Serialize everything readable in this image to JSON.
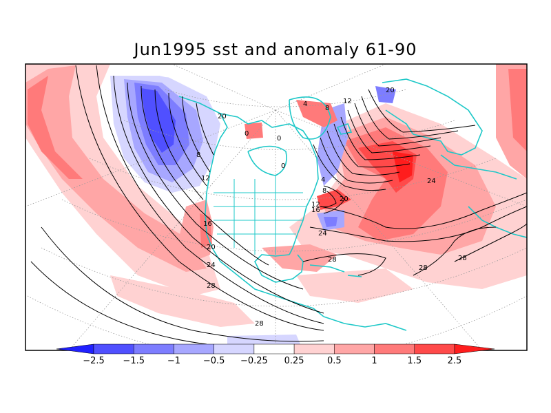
{
  "title": "Jun1995 sst and anomaly 61-90",
  "colors": {
    "border": "#000000",
    "coast": "#1ec8c8",
    "grid": "#9a9a9a",
    "contour": "#000000",
    "neg_strong": "#0000ff",
    "pos_strong": "#ff0000"
  },
  "colorbar": {
    "bins": [
      {
        "color": "#2020ff"
      },
      {
        "color": "#5050ff"
      },
      {
        "color": "#7d7dff"
      },
      {
        "color": "#a7a7ff"
      },
      {
        "color": "#d6d6ff"
      },
      {
        "color": "#ffffff"
      },
      {
        "color": "#ffd2d2"
      },
      {
        "color": "#ffa6a6"
      },
      {
        "color": "#ff7a7a"
      },
      {
        "color": "#ff4a4a"
      },
      {
        "color": "#ff1d1d"
      }
    ],
    "ticks": [
      "−2.5",
      "−1.5",
      "−1",
      "−0.5",
      "−0.25",
      "0.25",
      "0.5",
      "1",
      "1.5",
      "2.5"
    ]
  },
  "contour_labels": [
    {
      "id": "l8",
      "text": "8"
    },
    {
      "id": "l12a",
      "text": "12"
    },
    {
      "id": "l16a",
      "text": "16"
    },
    {
      "id": "l20a",
      "text": "20"
    },
    {
      "id": "l24a",
      "text": "24"
    },
    {
      "id": "l28a",
      "text": "28"
    },
    {
      "id": "l28b",
      "text": "28"
    },
    {
      "id": "l20b",
      "text": "20"
    },
    {
      "id": "l24b",
      "text": "24"
    },
    {
      "id": "l24c",
      "text": "24"
    },
    {
      "id": "l28c",
      "text": "28"
    },
    {
      "id": "l28d",
      "text": "28"
    },
    {
      "id": "l28e",
      "text": "28"
    },
    {
      "id": "l20c",
      "text": "20"
    },
    {
      "id": "l12b",
      "text": "12"
    },
    {
      "id": "l16b",
      "text": "16"
    },
    {
      "id": "l8b",
      "text": "8"
    },
    {
      "id": "l4a",
      "text": "4"
    },
    {
      "id": "l0a",
      "text": "0"
    },
    {
      "id": "l0b",
      "text": "0"
    },
    {
      "id": "l0c",
      "text": "0"
    },
    {
      "id": "l12c",
      "text": "12"
    },
    {
      "id": "l20d",
      "text": "20"
    },
    {
      "id": "l4b",
      "text": "4"
    },
    {
      "id": "l8c",
      "text": "8"
    }
  ]
}
